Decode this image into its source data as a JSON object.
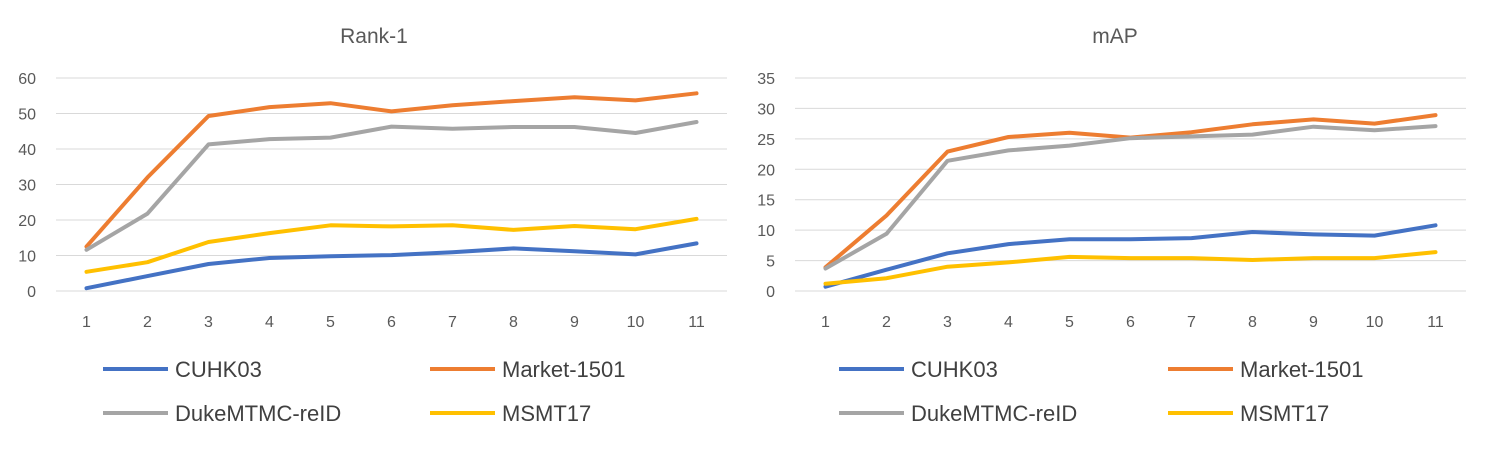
{
  "chart_data": [
    {
      "type": "line",
      "title": "Rank-1",
      "categories": [
        "1",
        "2",
        "3",
        "4",
        "5",
        "6",
        "7",
        "8",
        "9",
        "10",
        "11"
      ],
      "ylim": [
        0,
        60
      ],
      "yticks": [
        "0",
        "10",
        "20",
        "30",
        "40",
        "50",
        "60"
      ],
      "grid": true,
      "legend_position": "bottom",
      "series": [
        {
          "name": "CUHK03",
          "color": "#4472C4",
          "values": [
            0.8,
            4.2,
            7.6,
            9.3,
            9.8,
            10.1,
            10.9,
            12.0,
            11.2,
            10.3,
            13.4
          ]
        },
        {
          "name": "Market-1501",
          "color": "#ED7D31",
          "values": [
            12.5,
            32.0,
            49.3,
            51.8,
            52.9,
            50.6,
            52.3,
            53.5,
            54.6,
            53.7,
            55.7
          ]
        },
        {
          "name": "DukeMTMC-reID",
          "color": "#A5A5A5",
          "values": [
            11.6,
            21.8,
            41.3,
            42.8,
            43.2,
            46.3,
            45.7,
            46.2,
            46.2,
            44.5,
            47.6
          ]
        },
        {
          "name": "MSMT17",
          "color": "#FFC000",
          "values": [
            5.4,
            8.1,
            13.8,
            16.3,
            18.5,
            18.2,
            18.5,
            17.2,
            18.3,
            17.4,
            20.3
          ]
        }
      ]
    },
    {
      "type": "line",
      "title": "mAP",
      "categories": [
        "1",
        "2",
        "3",
        "4",
        "5",
        "6",
        "7",
        "8",
        "9",
        "10",
        "11"
      ],
      "ylim": [
        0,
        35
      ],
      "yticks": [
        "0",
        "5",
        "10",
        "15",
        "20",
        "25",
        "30",
        "35"
      ],
      "grid": true,
      "legend_position": "bottom",
      "series": [
        {
          "name": "CUHK03",
          "color": "#4472C4",
          "values": [
            0.7,
            3.5,
            6.2,
            7.7,
            8.5,
            8.5,
            8.7,
            9.7,
            9.3,
            9.1,
            10.8
          ]
        },
        {
          "name": "Market-1501",
          "color": "#ED7D31",
          "values": [
            3.9,
            12.4,
            22.9,
            25.3,
            26.0,
            25.2,
            26.1,
            27.4,
            28.2,
            27.5,
            28.9
          ]
        },
        {
          "name": "DukeMTMC-reID",
          "color": "#A5A5A5",
          "values": [
            3.7,
            9.4,
            21.4,
            23.1,
            23.9,
            25.1,
            25.4,
            25.7,
            27.0,
            26.4,
            27.1
          ]
        },
        {
          "name": "MSMT17",
          "color": "#FFC000",
          "values": [
            1.2,
            2.1,
            4.0,
            4.7,
            5.6,
            5.4,
            5.4,
            5.1,
            5.4,
            5.4,
            6.4
          ]
        }
      ]
    }
  ]
}
